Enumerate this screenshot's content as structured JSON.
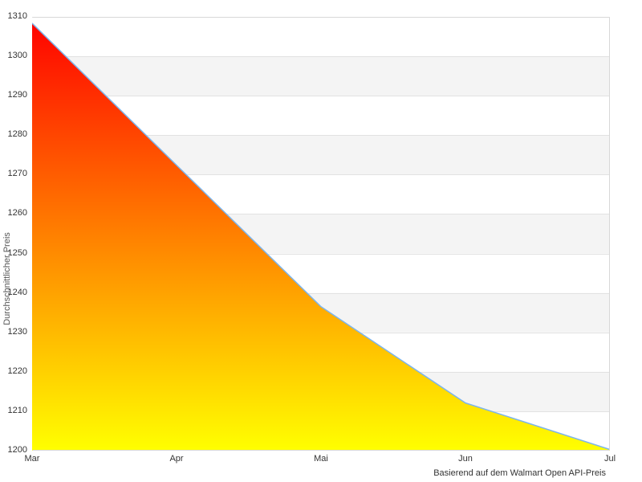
{
  "chart": {
    "y_axis_title": "Durchschnittlicher Preis",
    "caption": "Basierend auf dem Walmart Open API-Preis"
  },
  "chart_data": {
    "type": "area",
    "categories": [
      "Mar",
      "Apr",
      "Mai",
      "Jun",
      "Jul"
    ],
    "series": [
      {
        "name": "Durchschnittlicher Preis",
        "values": [
          1308.4,
          1272.4,
          1236.5,
          1212.1,
          1200.3
        ]
      }
    ],
    "title": "",
    "xlabel": "Basierend auf dem Walmart Open API-Preis",
    "ylabel": "Durchschnittlicher Preis",
    "ylim": [
      1200,
      1310
    ],
    "ytick_step": 10,
    "ytick_labels": [
      "1310",
      "1300",
      "1290",
      "1280",
      "1270",
      "1260",
      "1250",
      "1240",
      "1230",
      "1220",
      "1210",
      "1200"
    ],
    "grid": true,
    "alternating_bands": true,
    "legend": "none",
    "colors": {
      "line": "#7cb5ec",
      "gradient_top": "#ff0000",
      "gradient_bottom": "#ffff00",
      "band": "#f4f4f4",
      "gridline": "#e2e2e2",
      "border": "#d8d8d8",
      "tick_label": "#333333",
      "axis_title": "#555555"
    }
  }
}
